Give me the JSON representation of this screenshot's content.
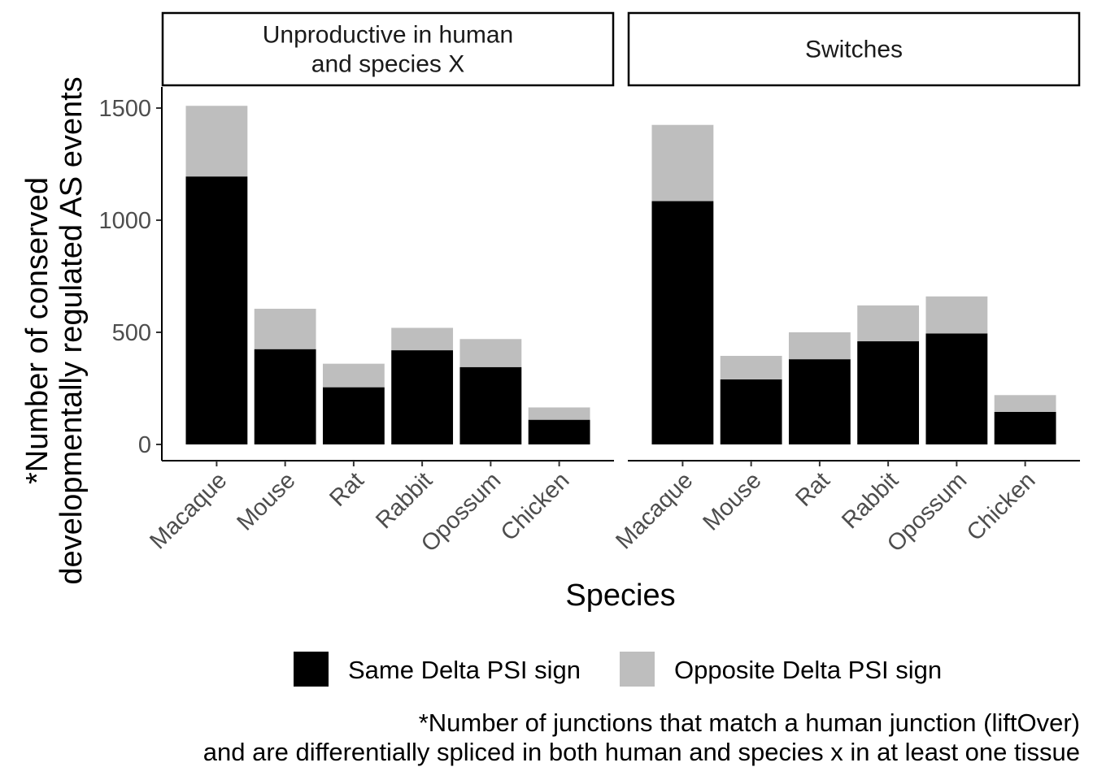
{
  "chart_data": {
    "type": "bar",
    "stacked": true,
    "xlabel": "Species",
    "ylabel_lines": [
      "*Number of conserved",
      "developmentally regulated AS events"
    ],
    "ylim": [
      0,
      1600
    ],
    "yticks": [
      0,
      500,
      1000,
      1500
    ],
    "categories": [
      "Macaque",
      "Mouse",
      "Rat",
      "Rabbit",
      "Opossum",
      "Chicken"
    ],
    "legend_position": "bottom",
    "panels": [
      {
        "strip_lines": [
          "Unproductive in human",
          "and species X"
        ],
        "series": [
          {
            "name": "Same Delta PSI sign",
            "color": "#000000",
            "values": [
              1195,
              425,
              255,
              420,
              345,
              110
            ]
          },
          {
            "name": "Opposite Delta PSI sign",
            "color": "#bebebe",
            "values": [
              315,
              180,
              105,
              100,
              125,
              55
            ]
          }
        ]
      },
      {
        "strip_lines": [
          "Switches"
        ],
        "series": [
          {
            "name": "Same Delta PSI sign",
            "color": "#000000",
            "values": [
              1085,
              290,
              380,
              460,
              495,
              145
            ]
          },
          {
            "name": "Opposite Delta PSI sign",
            "color": "#bebebe",
            "values": [
              340,
              105,
              120,
              160,
              165,
              75
            ]
          }
        ]
      }
    ]
  },
  "legend": {
    "items": [
      {
        "label": "Same Delta PSI sign",
        "color": "#000000"
      },
      {
        "label": "Opposite Delta PSI sign",
        "color": "#bebebe"
      }
    ]
  },
  "caption": {
    "line1": "*Number of junctions that match a human junction (liftOver)",
    "line2": "and are differentially spliced in both human and species x in at least one tissue"
  }
}
